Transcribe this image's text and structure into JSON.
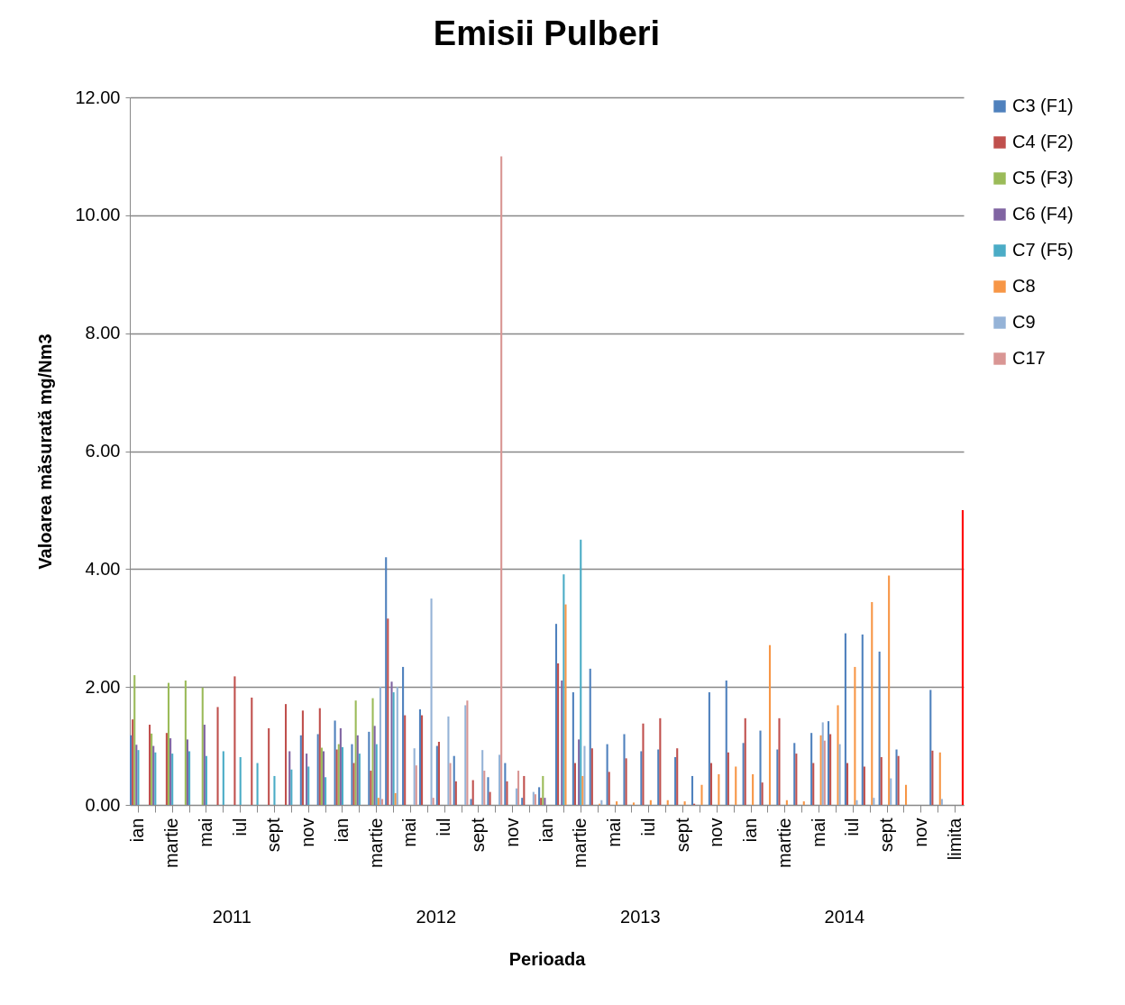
{
  "chart_data": {
    "type": "bar",
    "title": "Emisii Pulberi",
    "xlabel": "Perioada",
    "ylabel": "Valoarea măsurată mg/Nm3",
    "categories": [
      "ian",
      null,
      "martie",
      null,
      "mai",
      null,
      "iul",
      null,
      "sept",
      null,
      "nov",
      null,
      "ian",
      null,
      "martie",
      null,
      "mai",
      null,
      "iul",
      null,
      "sept",
      null,
      "nov",
      null,
      "ian",
      null,
      "martie",
      null,
      "mai",
      null,
      "iul",
      null,
      "sept",
      null,
      "nov",
      null,
      "ian",
      null,
      "martie",
      null,
      "mai",
      null,
      "iul",
      null,
      "sept",
      null,
      "nov",
      null,
      "limita"
    ],
    "series": [
      {
        "name": "C3 (F1)",
        "color": "#4f81bd",
        "values": [
          1.18,
          null,
          null,
          null,
          null,
          null,
          null,
          null,
          null,
          null,
          1.18,
          1.2,
          1.43,
          1.03,
          1.24,
          4.2,
          2.34,
          1.62,
          1.0,
          0.83,
          0.1,
          0.47,
          0.71,
          0.12,
          0.3,
          3.07,
          1.91,
          2.31,
          1.03,
          1.2,
          0.91,
          0.94,
          0.81,
          0.49,
          1.91,
          2.11,
          1.05,
          1.26,
          0.94,
          1.05,
          1.22,
          1.42,
          2.91,
          2.89,
          2.6,
          0.94,
          null,
          1.95,
          null
        ]
      },
      {
        "name": "C4 (F2)",
        "color": "#c0504d",
        "values": [
          1.45,
          1.36,
          1.22,
          null,
          null,
          1.66,
          2.18,
          1.82,
          1.3,
          1.71,
          1.6,
          1.64,
          0.94,
          0.71,
          0.58,
          3.16,
          1.52,
          1.52,
          1.07,
          0.4,
          0.42,
          0.22,
          0.4,
          0.49,
          0.12,
          2.4,
          0.71,
          0.96,
          0.56,
          0.79,
          1.38,
          1.47,
          0.96,
          0.02,
          0.71,
          0.89,
          1.47,
          0.38,
          1.47,
          0.87,
          0.71,
          1.2,
          0.71,
          0.65,
          0.81,
          0.83,
          null,
          0.92,
          null
        ]
      },
      {
        "name": "C5 (F3)",
        "color": "#9bbb59",
        "values": [
          2.2,
          1.21,
          2.07,
          2.11,
          1.99,
          null,
          null,
          null,
          null,
          null,
          null,
          0.97,
          1.03,
          1.77,
          1.81,
          null,
          null,
          null,
          null,
          null,
          null,
          null,
          null,
          null,
          0.49,
          null,
          null,
          null,
          null,
          null,
          null,
          null,
          null,
          null,
          null,
          null,
          null,
          null,
          null,
          null,
          null,
          null,
          null,
          null,
          null,
          null,
          null,
          null,
          null
        ]
      },
      {
        "name": "C6 (F4)",
        "color": "#8064a2",
        "values": [
          1.02,
          1.0,
          1.13,
          1.11,
          1.36,
          null,
          null,
          null,
          null,
          0.91,
          0.87,
          0.91,
          1.3,
          1.18,
          1.34,
          2.09,
          null,
          null,
          null,
          null,
          null,
          null,
          null,
          null,
          0.12,
          2.11,
          1.11,
          null,
          null,
          null,
          null,
          null,
          null,
          null,
          null,
          null,
          null,
          null,
          null,
          null,
          null,
          null,
          null,
          null,
          null,
          null,
          null,
          null,
          null
        ]
      },
      {
        "name": "C7 (F5)",
        "color": "#4bacc6",
        "values": [
          0.93,
          0.89,
          0.87,
          0.91,
          0.83,
          0.91,
          0.81,
          0.71,
          0.49,
          0.6,
          0.65,
          0.47,
          0.98,
          0.87,
          1.03,
          1.91,
          null,
          null,
          null,
          null,
          null,
          null,
          null,
          null,
          null,
          3.91,
          4.5,
          null,
          null,
          null,
          null,
          null,
          null,
          null,
          null,
          null,
          null,
          null,
          null,
          null,
          null,
          null,
          null,
          null,
          null,
          null,
          null,
          null,
          null
        ]
      },
      {
        "name": "C8",
        "color": "#f79646",
        "values": [
          null,
          null,
          null,
          null,
          null,
          null,
          null,
          null,
          null,
          null,
          null,
          null,
          null,
          null,
          0.12,
          0.2,
          null,
          null,
          null,
          null,
          null,
          null,
          null,
          null,
          null,
          3.4,
          0.49,
          0.02,
          0.06,
          0.04,
          0.08,
          0.08,
          0.06,
          0.34,
          0.52,
          0.65,
          0.52,
          2.71,
          0.08,
          0.06,
          1.18,
          1.69,
          2.34,
          3.44,
          3.89,
          0.34,
          null,
          0.89,
          null
        ]
      },
      {
        "name": "C9",
        "color": "#95b3d7",
        "values": [
          null,
          null,
          null,
          null,
          null,
          null,
          null,
          null,
          null,
          null,
          null,
          null,
          null,
          null,
          2.0,
          2.0,
          0.96,
          3.5,
          1.5,
          1.69,
          0.93,
          0.85,
          0.28,
          0.22,
          null,
          null,
          1.0,
          0.08,
          null,
          null,
          null,
          null,
          null,
          null,
          null,
          null,
          null,
          null,
          null,
          null,
          1.4,
          1.03,
          0.08,
          0.12,
          0.45,
          null,
          null,
          0.1,
          null
        ]
      },
      {
        "name": "C17",
        "color": "#d99694",
        "values": [
          null,
          null,
          null,
          null,
          null,
          null,
          null,
          null,
          null,
          null,
          null,
          null,
          null,
          null,
          0.1,
          null,
          0.67,
          0.12,
          0.71,
          1.77,
          0.58,
          11.0,
          0.58,
          0.18,
          null,
          null,
          null,
          null,
          null,
          null,
          null,
          null,
          null,
          null,
          null,
          null,
          null,
          null,
          null,
          null,
          1.09,
          null,
          null,
          null,
          null,
          null,
          null,
          null,
          null
        ]
      },
      {
        "color": "#ff0000",
        "values": [
          null,
          null,
          null,
          null,
          null,
          null,
          null,
          null,
          null,
          null,
          null,
          null,
          null,
          null,
          null,
          null,
          null,
          null,
          null,
          null,
          null,
          null,
          null,
          null,
          null,
          null,
          null,
          null,
          null,
          null,
          null,
          null,
          null,
          null,
          null,
          null,
          null,
          null,
          null,
          null,
          null,
          null,
          null,
          null,
          null,
          null,
          null,
          null,
          5.0
        ]
      }
    ],
    "ylim": [
      0,
      12
    ],
    "yticks": [
      {
        "value": 0,
        "label": "0.00"
      },
      {
        "value": 2,
        "label": "2.00"
      },
      {
        "value": 4,
        "label": "4.00"
      },
      {
        "value": 6,
        "label": "6.00"
      },
      {
        "value": 8,
        "label": "8.00"
      },
      {
        "value": 10,
        "label": "10.00"
      },
      {
        "value": 12,
        "label": "12.00"
      }
    ],
    "grid": "y",
    "legend": "right",
    "annotations": [
      "2011",
      "2012",
      "2013",
      "2014"
    ]
  }
}
